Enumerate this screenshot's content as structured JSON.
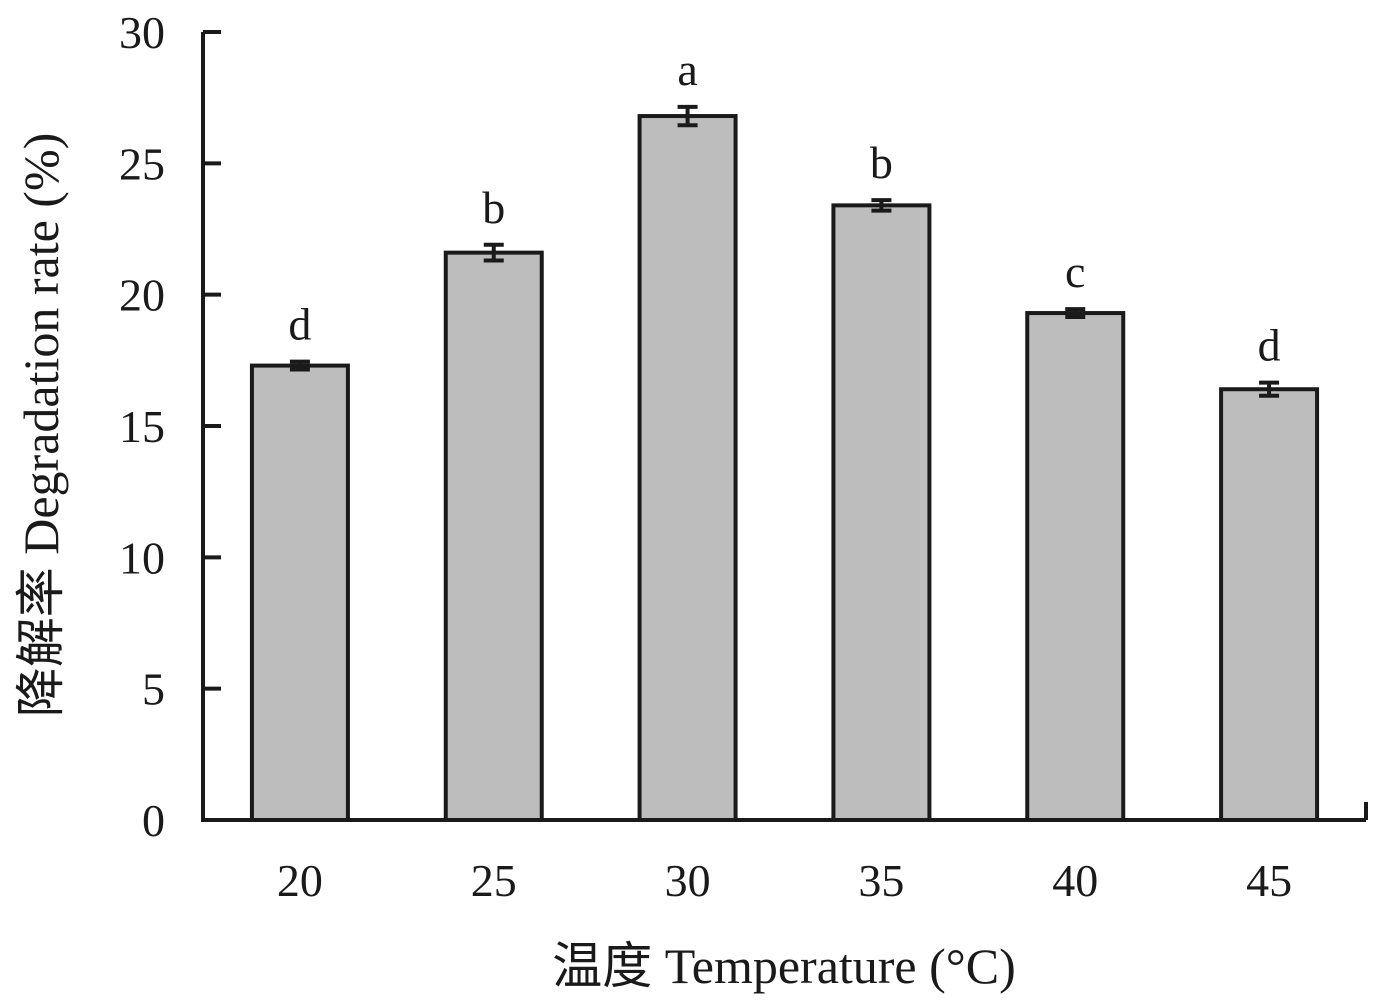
{
  "chart_data": {
    "type": "bar",
    "categories": [
      "20",
      "25",
      "30",
      "35",
      "40",
      "45"
    ],
    "values": [
      17.3,
      21.6,
      26.8,
      23.4,
      19.3,
      16.4
    ],
    "errors": [
      0.15,
      0.3,
      0.35,
      0.2,
      0.15,
      0.25
    ],
    "significance_letters": [
      "d",
      "b",
      "a",
      "b",
      "c",
      "d"
    ],
    "xlabel": "温度 Temperature (°C)",
    "ylabel": "降解率 Degradation rate (%)",
    "ylim": [
      0,
      30
    ],
    "yticks": [
      "0",
      "5",
      "10",
      "15",
      "20",
      "25",
      "30"
    ],
    "grid": false,
    "colors": {
      "bar_fill": "#bdbdbd",
      "bar_stroke": "#1a1a1a",
      "axis": "#1a1a1a"
    }
  }
}
